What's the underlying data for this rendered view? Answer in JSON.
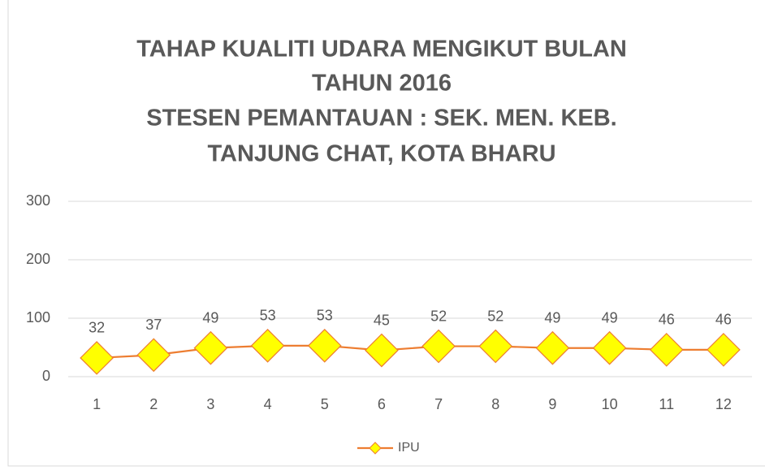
{
  "chart_data": {
    "type": "line",
    "title": [
      "TAHAP KUALITI UDARA MENGIKUT BULAN",
      "TAHUN 2016",
      "STESEN PEMANTAUAN : SEK. MEN. KEB.",
      "TANJUNG CHAT, KOTA BHARU"
    ],
    "categories": [
      "1",
      "2",
      "3",
      "4",
      "5",
      "6",
      "7",
      "8",
      "9",
      "10",
      "11",
      "12"
    ],
    "series": [
      {
        "name": "IPU",
        "color": "#ed7d31",
        "marker_color": "#ffff00",
        "values": [
          32,
          37,
          49,
          53,
          53,
          45,
          52,
          52,
          49,
          49,
          46,
          46
        ]
      }
    ],
    "ylim": [
      0,
      300
    ],
    "yticks": [
      0,
      100,
      200,
      300
    ],
    "grid": true,
    "legend": "bottom"
  }
}
